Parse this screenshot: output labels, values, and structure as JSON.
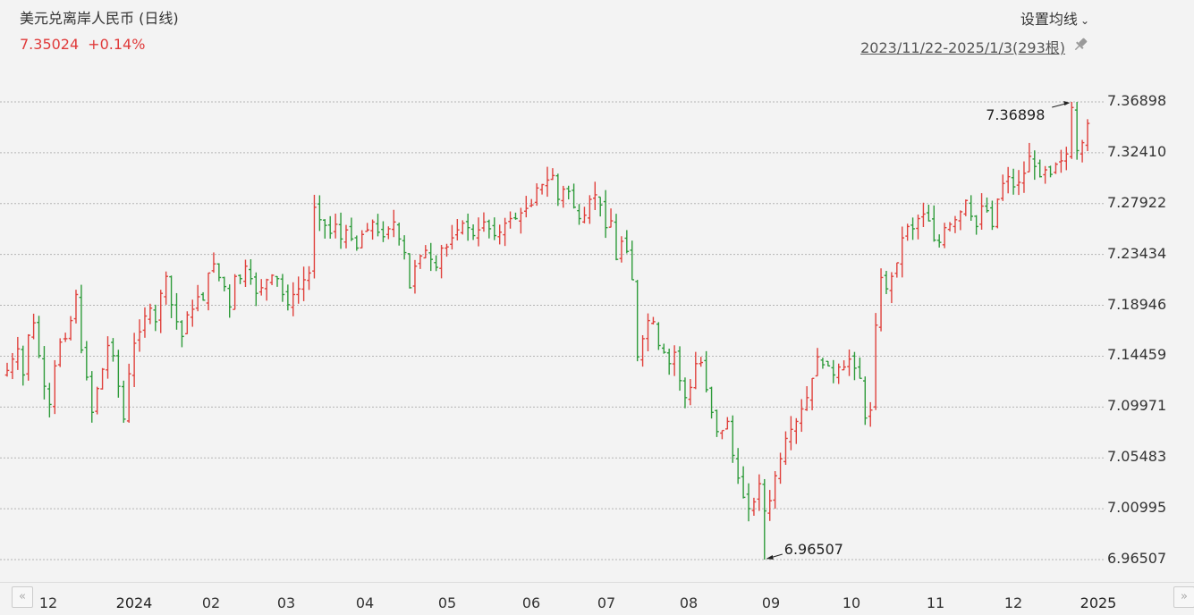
{
  "header": {
    "title": "美元兑离岸人民币 (日线)",
    "price": "7.35024",
    "change": "+0.14%",
    "ma_button": "设置均线",
    "range": "2023/11/22-2025/1/3(293根)"
  },
  "colors": {
    "up": "#e0413c",
    "down": "#2e9b3a",
    "grid": "#b5b5b5",
    "background": "#f3f3f3"
  },
  "icons": {
    "pin": "pin-icon",
    "chevron": "chevron-down-icon",
    "scroll_left": "double-chevron-left-icon",
    "scroll_right": "double-chevron-right-icon"
  },
  "nav": {
    "left": "«",
    "right": "»"
  },
  "chart_data": {
    "type": "ohlc",
    "title": "美元兑离岸人民币 (日线)",
    "ylim": [
      6.96507,
      7.36898
    ],
    "y_ticks": [
      "7.36898",
      "7.32410",
      "7.27922",
      "7.23434",
      "7.18946",
      "7.14459",
      "7.09971",
      "7.05483",
      "7.00995",
      "6.96507"
    ],
    "x_ticks": [
      "12",
      "2024",
      "02",
      "03",
      "04",
      "05",
      "06",
      "07",
      "08",
      "09",
      "10",
      "11",
      "12",
      "2025"
    ],
    "annotations": {
      "max": "7.36898",
      "min": "6.96507"
    },
    "grid": "horizontal dashed",
    "closes": [
      7.132,
      7.142,
      7.151,
      7.128,
      7.163,
      7.174,
      7.145,
      7.118,
      7.102,
      7.136,
      7.157,
      7.16,
      7.176,
      7.199,
      7.15,
      7.126,
      7.095,
      7.116,
      7.133,
      7.154,
      7.145,
      7.118,
      7.089,
      7.129,
      7.156,
      7.166,
      7.18,
      7.187,
      7.175,
      7.2,
      7.215,
      7.19,
      7.175,
      7.162,
      7.181,
      7.186,
      7.197,
      7.194,
      7.218,
      7.226,
      7.214,
      7.206,
      7.188,
      7.215,
      7.213,
      7.224,
      7.213,
      7.2,
      7.205,
      7.212,
      7.216,
      7.213,
      7.199,
      7.19,
      7.199,
      7.204,
      7.212,
      7.218,
      7.276,
      7.265,
      7.26,
      7.253,
      7.261,
      7.248,
      7.256,
      7.248,
      7.24,
      7.252,
      7.256,
      7.263,
      7.254,
      7.25,
      7.257,
      7.263,
      7.248,
      7.236,
      7.205,
      7.224,
      7.233,
      7.238,
      7.23,
      7.223,
      7.24,
      7.241,
      7.249,
      7.256,
      7.262,
      7.258,
      7.251,
      7.256,
      7.263,
      7.257,
      7.251,
      7.254,
      7.262,
      7.266,
      7.266,
      7.271,
      7.275,
      7.278,
      7.293,
      7.296,
      7.3,
      7.304,
      7.283,
      7.292,
      7.29,
      7.276,
      7.266,
      7.269,
      7.283,
      7.287,
      7.278,
      7.258,
      7.264,
      7.23,
      7.246,
      7.237,
      7.212,
      7.144,
      7.16,
      7.176,
      7.175,
      7.154,
      7.148,
      7.138,
      7.148,
      7.123,
      7.108,
      7.117,
      7.138,
      7.139,
      7.115,
      7.095,
      7.078,
      7.079,
      7.087,
      7.057,
      7.037,
      7.02,
      7.01,
      7.016,
      7.032,
      7.008,
      7.017,
      7.039,
      7.054,
      7.072,
      7.08,
      7.087,
      7.098,
      7.108,
      7.125,
      7.144,
      7.137,
      7.136,
      7.128,
      7.135,
      7.135,
      7.142,
      7.134,
      7.125,
      7.09,
      7.097,
      7.172,
      7.214,
      7.204,
      7.215,
      7.227,
      7.249,
      7.259,
      7.257,
      7.266,
      7.27,
      7.264,
      7.247,
      7.245,
      7.258,
      7.261,
      7.265,
      7.272,
      7.282,
      7.268,
      7.259,
      7.277,
      7.273,
      7.259,
      7.283,
      7.297,
      7.303,
      7.294,
      7.298,
      7.306,
      7.321,
      7.312,
      7.303,
      7.309,
      7.305,
      7.314,
      7.317,
      7.323,
      7.364,
      7.326,
      7.333,
      7.35
    ]
  }
}
